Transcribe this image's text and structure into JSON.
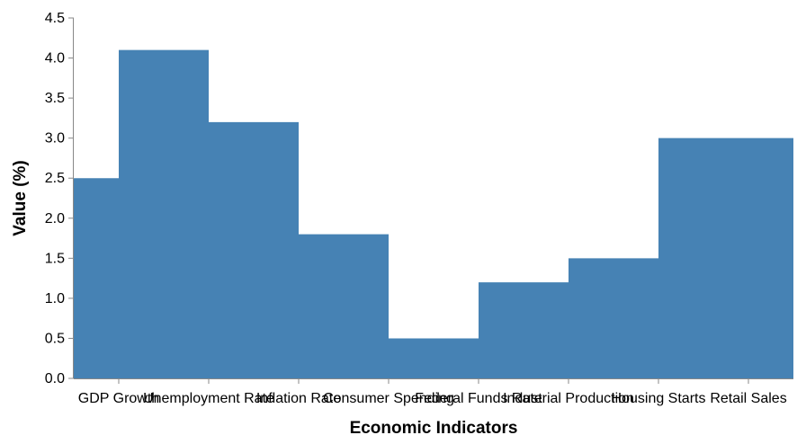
{
  "chart_data": {
    "type": "area",
    "interpolation": "step",
    "categories": [
      "GDP Growth",
      "Unemployment Rate",
      "Inflation Rate",
      "Consumer Spending",
      "Federal Funds Rate",
      "Industrial Production",
      "Housing Starts",
      "Retail Sales"
    ],
    "values": [
      2.5,
      4.1,
      3.2,
      1.8,
      0.5,
      1.2,
      1.5,
      3.0
    ],
    "xlabel": "Economic Indicators",
    "ylabel": "Value (%)",
    "ylim": [
      0,
      4.5
    ],
    "yticks": [
      "0.0",
      "0.5",
      "1.0",
      "1.5",
      "2.0",
      "2.5",
      "3.0",
      "3.5",
      "4.0",
      "4.5"
    ],
    "grid": false,
    "color": "#4682b4"
  }
}
